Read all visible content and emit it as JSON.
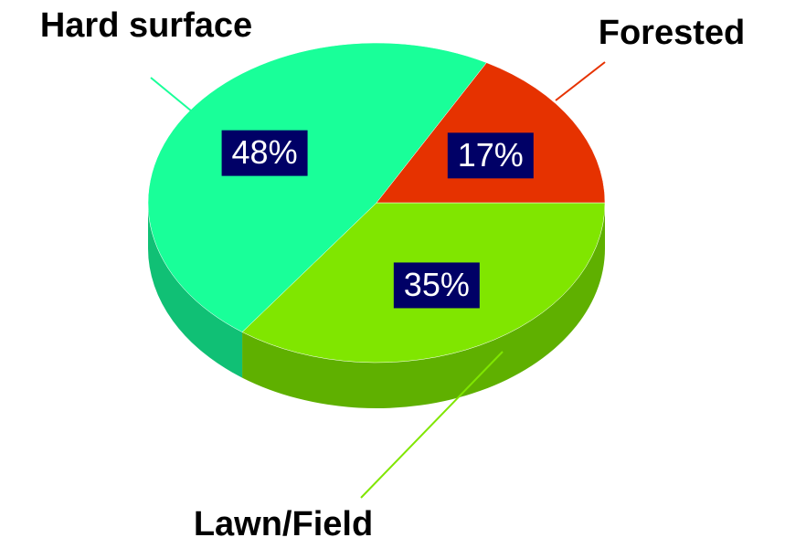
{
  "chart_data": {
    "type": "pie",
    "categories": [
      "Lawn/Field",
      "Hard surface",
      "Forested"
    ],
    "values": [
      35,
      48,
      17
    ],
    "value_labels": [
      "35%",
      "48%",
      "17%"
    ],
    "colors": [
      "#80e600",
      "#19ff99",
      "#e63200"
    ],
    "side_colors": [
      "#5fb000",
      "#10c075",
      "#a82400"
    ],
    "label_color": "#000066"
  }
}
